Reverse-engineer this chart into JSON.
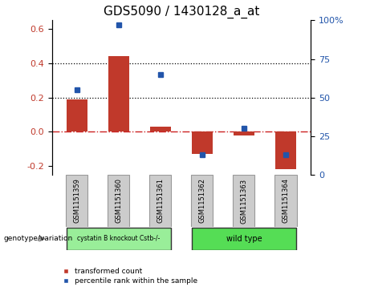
{
  "title": "GDS5090 / 1430128_a_at",
  "samples": [
    "GSM1151359",
    "GSM1151360",
    "GSM1151361",
    "GSM1151362",
    "GSM1151363",
    "GSM1151364"
  ],
  "bar_values": [
    0.19,
    0.44,
    0.03,
    -0.13,
    -0.02,
    -0.22
  ],
  "percentile_values": [
    55,
    97,
    65,
    13,
    30,
    13
  ],
  "ylim_left": [
    -0.25,
    0.65
  ],
  "ylim_right": [
    0,
    100
  ],
  "yticks_left": [
    -0.2,
    0.0,
    0.2,
    0.4,
    0.6
  ],
  "yticks_right": [
    0,
    25,
    50,
    75,
    100
  ],
  "hlines": [
    0.2,
    0.4
  ],
  "bar_color": "#c0392b",
  "point_color": "#2255aa",
  "dashed_line_color": "#cc2222",
  "group1_label": "cystatin B knockout Cstb-/-",
  "group2_label": "wild type",
  "group1_color": "#99ee99",
  "group2_color": "#55dd55",
  "group1_indices": [
    0,
    1,
    2
  ],
  "group2_indices": [
    3,
    4,
    5
  ],
  "legend_red_label": "transformed count",
  "legend_blue_label": "percentile rank within the sample",
  "xlabel_label": "genotype/variation",
  "bg_color": "#ffffff",
  "title_fontsize": 11,
  "tick_fontsize": 8,
  "bar_width": 0.5
}
